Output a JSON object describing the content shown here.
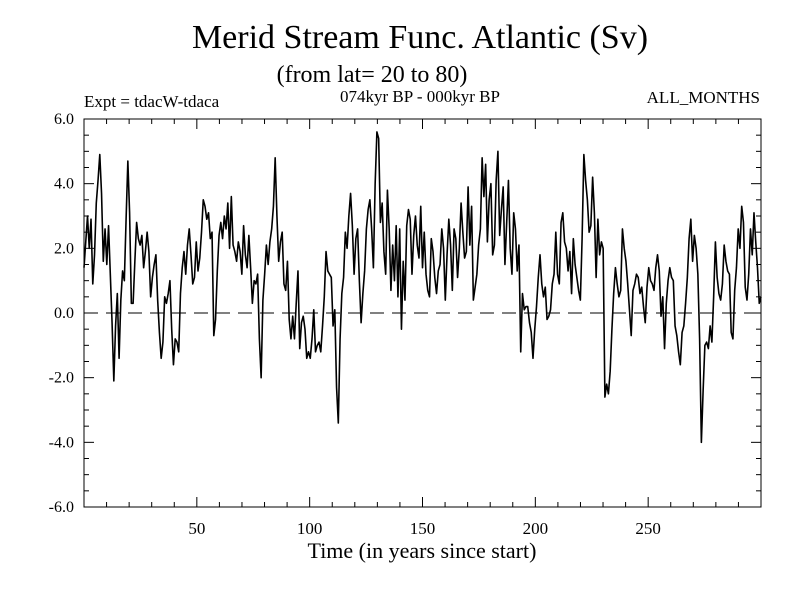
{
  "chart_data": {
    "type": "line",
    "title": "Merid Stream Func. Atlantic (Sv)",
    "subtitle": "(from lat= 20 to 80)",
    "experiment_label": "Expt = tdacW-tdaca",
    "period_label": "074kyr BP - 000kyr BP",
    "months_label": "ALL_MONTHS",
    "xlabel": "Time (in years since start)",
    "ylabel": "",
    "xlim": [
      0,
      300
    ],
    "ylim": [
      -6.0,
      6.0
    ],
    "x_ticks": [
      50,
      100,
      150,
      200,
      250
    ],
    "y_ticks": [
      "6.0",
      "4.0",
      "2.0",
      "0.0",
      "-2.0",
      "-4.0",
      "-6.0"
    ],
    "reference_line": 0.0,
    "grid": false,
    "line_color": "#000000",
    "series": [
      {
        "values": [
          1.4,
          2.2,
          3.0,
          2.0,
          2.9,
          0.9,
          1.8,
          3.4,
          4.1,
          4.9,
          3.7,
          1.6,
          2.6,
          1.5,
          2.7,
          1.2,
          -0.3,
          -2.1,
          -0.4,
          0.6,
          -1.4,
          0.4,
          1.3,
          1.0,
          2.9,
          4.7,
          3.1,
          0.3,
          0.3,
          1.6,
          2.8,
          2.3,
          2.1,
          2.4,
          1.4,
          1.9,
          2.5,
          1.9,
          0.5,
          1.1,
          1.5,
          1.8,
          0.4,
          -0.6,
          -1.4,
          -0.9,
          0.5,
          0.3,
          0.6,
          1.0,
          -0.5,
          -1.6,
          -0.8,
          -0.9,
          -1.2,
          0.6,
          1.4,
          1.9,
          1.2,
          2.1,
          2.6,
          1.8,
          0.9,
          1.1,
          2.2,
          1.3,
          1.7,
          2.5,
          3.5,
          3.3,
          2.9,
          3.1,
          2.3,
          2.5,
          -0.7,
          -0.2,
          1.3,
          2.4,
          2.8,
          2.3,
          3.0,
          2.6,
          3.4,
          2.0,
          3.6,
          2.1,
          1.9,
          1.6,
          2.2,
          1.9,
          1.2,
          2.7,
          1.8,
          1.4,
          2.4,
          1.4,
          0.3,
          1.0,
          0.9,
          1.2,
          -0.8,
          -2.0,
          0.4,
          1.2,
          2.1,
          1.5,
          2.2,
          2.6,
          3.3,
          4.8,
          3.0,
          1.6,
          2.2,
          2.5,
          0.9,
          0.7,
          1.6,
          -0.2,
          -0.8,
          -0.1,
          -0.8,
          0.3,
          1.3,
          -1.1,
          -0.3,
          -0.1,
          -0.5,
          -1.4,
          -1.2,
          -1.4,
          -0.8,
          0.1,
          -1.2,
          -1.0,
          -0.9,
          -1.2,
          -0.4,
          0.5,
          1.9,
          1.3,
          1.2,
          1.1,
          -0.4,
          0.1,
          -2.3,
          -3.4,
          -0.8,
          0.6,
          1.1,
          2.5,
          2.0,
          3.0,
          3.7,
          2.7,
          1.2,
          2.3,
          2.6,
          1.0,
          -0.3,
          0.6,
          1.3,
          2.6,
          3.2,
          3.5,
          2.6,
          1.4,
          4.0,
          5.6,
          5.4,
          2.8,
          3.4,
          1.9,
          1.2,
          3.8,
          2.6,
          0.7,
          2.1,
          1.0,
          2.7,
          0.5,
          2.6,
          -0.5,
          1.6,
          0.4,
          2.7,
          3.2,
          2.9,
          1.2,
          2.4,
          3.0,
          2.1,
          1.7,
          3.3,
          1.4,
          2.5,
          1.2,
          0.7,
          0.5,
          2.3,
          1.9,
          1.1,
          0.6,
          1.3,
          1.5,
          2.6,
          2.0,
          0.4,
          1.8,
          2.9,
          2.1,
          0.7,
          2.6,
          2.3,
          1.1,
          2.0,
          3.4,
          2.5,
          1.7,
          1.9,
          3.9,
          2.1,
          3.3,
          0.4,
          0.8,
          1.2,
          2.1,
          2.6,
          4.8,
          3.6,
          4.6,
          2.2,
          3.5,
          4.0,
          1.8,
          2.1,
          4.1,
          5.0,
          2.4,
          3.2,
          3.9,
          1.5,
          2.8,
          4.1,
          2.0,
          1.2,
          3.1,
          2.6,
          1.3,
          2.1,
          -1.2,
          0.6,
          0.1,
          0.2,
          0.2,
          -0.3,
          -0.6,
          -1.4,
          -0.5,
          0.2,
          1.1,
          1.8,
          0.9,
          0.5,
          0.8,
          -0.2,
          -0.1,
          0.1,
          0.9,
          1.2,
          2.5,
          1.2,
          0.9,
          2.8,
          3.1,
          2.2,
          2.0,
          1.3,
          1.9,
          0.6,
          2.3,
          1.5,
          1.1,
          0.7,
          0.4,
          2.3,
          4.9,
          4.1,
          3.5,
          2.5,
          2.7,
          4.2,
          3.1,
          1.1,
          2.9,
          1.8,
          2.2,
          2.0,
          -2.6,
          -2.2,
          -2.5,
          -1.8,
          -0.5,
          0.6,
          1.4,
          0.9,
          0.5,
          0.7,
          2.6,
          2.0,
          1.6,
          0.9,
          0.1,
          -0.7,
          0.7,
          0.9,
          1.2,
          1.1,
          0.6,
          0.8,
          0.2,
          -0.3,
          0.8,
          1.4,
          1.0,
          0.9,
          0.7,
          1.4,
          1.8,
          1.3,
          -0.1,
          0.5,
          -1.1,
          0.3,
          1.0,
          1.4,
          1.1,
          1.0,
          -0.4,
          -0.7,
          -1.2,
          -1.6,
          -0.6,
          -0.4,
          0.3,
          1.1,
          2.3,
          2.9,
          1.6,
          2.4,
          2.0,
          1.2,
          -0.8,
          -4.0,
          -2.4,
          -1.0,
          -0.9,
          -1.1,
          -0.4,
          -0.9,
          0.5,
          2.2,
          1.1,
          0.6,
          0.4,
          0.9,
          2.1,
          1.6,
          1.3,
          1.2,
          -0.6,
          -0.8,
          0.7,
          1.4,
          2.6,
          2.0,
          3.3,
          2.8,
          0.8,
          0.4,
          1.2,
          2.6,
          1.8,
          3.1,
          2.2,
          1.4,
          0.3,
          0.5
        ]
      }
    ]
  }
}
